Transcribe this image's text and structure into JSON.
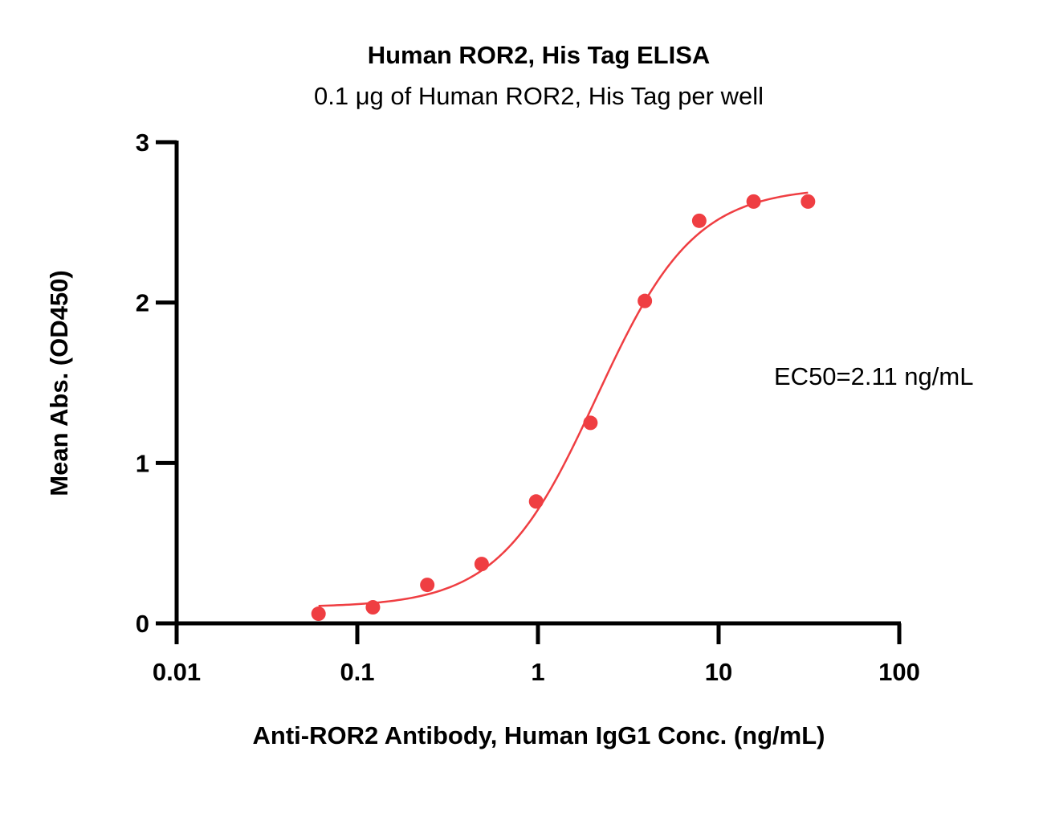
{
  "chart_data": {
    "type": "scatter",
    "title": "Human ROR2, His Tag ELISA",
    "subtitle": "0.1 μg of Human ROR2, His Tag per well",
    "xlabel": "Anti-ROR2 Antibody, Human IgG1 Conc. (ng/mL)",
    "ylabel": "Mean Abs. (OD450)",
    "x_scale": "log",
    "xlim": [
      0.01,
      100
    ],
    "ylim": [
      0,
      3
    ],
    "x_ticks": [
      0.01,
      0.1,
      1,
      10,
      100
    ],
    "x_tick_labels": [
      "0.01",
      "0.1",
      "1",
      "10",
      "100"
    ],
    "y_ticks": [
      0,
      1,
      2,
      3
    ],
    "y_tick_labels": [
      "0",
      "1",
      "2",
      "3"
    ],
    "grid": false,
    "color": "#ef3e42",
    "series": [
      {
        "x": [
          0.061,
          0.122,
          0.244,
          0.488,
          0.977,
          1.953,
          3.906,
          7.813,
          15.625,
          31.25
        ],
        "y": [
          0.06,
          0.1,
          0.24,
          0.37,
          0.76,
          1.25,
          2.01,
          2.51,
          2.63,
          2.63
        ]
      }
    ],
    "fit_curve": {
      "type": "4PL",
      "x_range": [
        0.061,
        31.25
      ],
      "bottom": 0.1,
      "top": 2.72,
      "ec50": 2.11,
      "hill": 1.6
    },
    "annotation": "EC50=2.11 ng/mL"
  }
}
